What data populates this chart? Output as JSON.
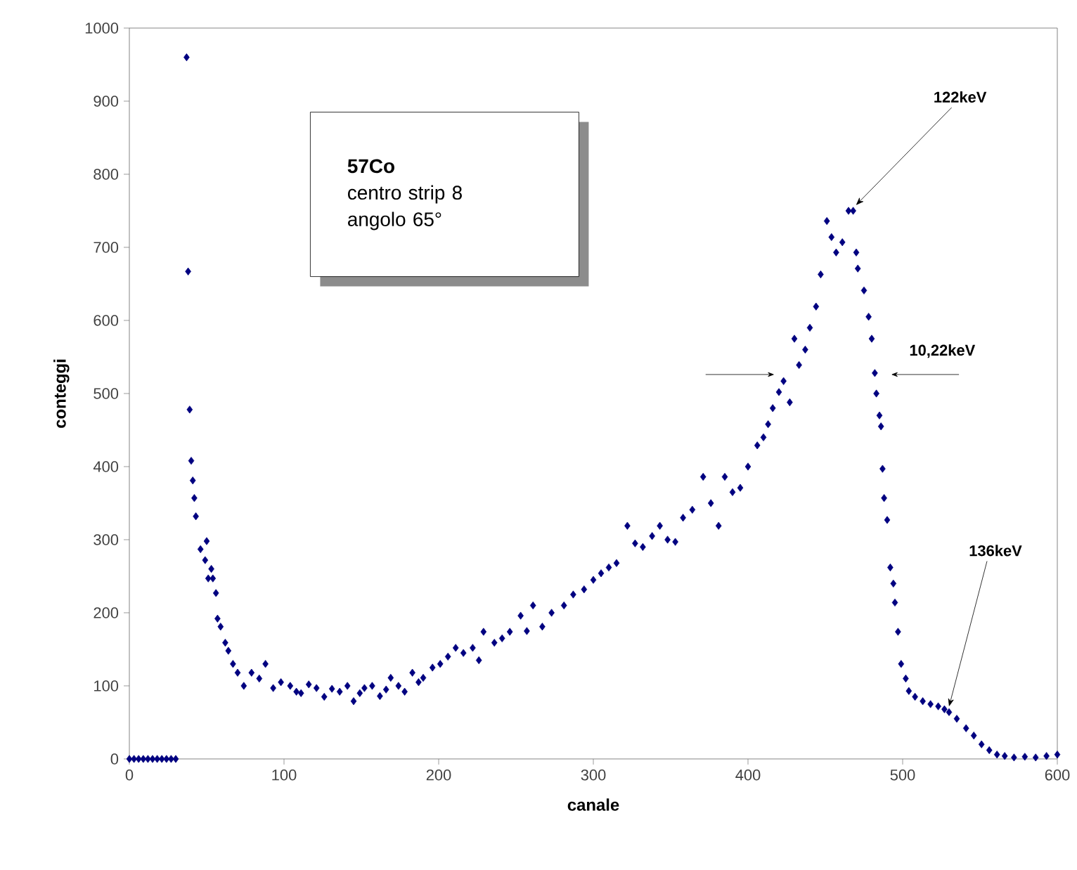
{
  "chart_data": {
    "type": "scatter",
    "xlabel": "canale",
    "ylabel": "conteggi",
    "xlim": [
      0,
      600
    ],
    "ylim": [
      0,
      1000
    ],
    "xticks": [
      0,
      100,
      200,
      300,
      400,
      500,
      600
    ],
    "yticks": [
      0,
      100,
      200,
      300,
      400,
      500,
      600,
      700,
      800,
      900,
      1000
    ],
    "grid": false,
    "marker": "diamond",
    "series": [
      {
        "color": "#000080",
        "x": [
          0,
          3,
          6,
          9,
          12,
          15,
          18,
          21,
          24,
          27,
          30,
          37,
          38,
          39,
          40,
          41,
          42,
          43,
          46,
          49,
          50,
          51,
          53,
          54,
          56,
          57,
          59,
          62,
          64,
          67,
          70,
          74,
          79,
          84,
          88,
          93,
          98,
          104,
          108,
          111,
          116,
          121,
          126,
          131,
          136,
          141,
          145,
          149,
          152,
          157,
          162,
          166,
          169,
          174,
          178,
          183,
          187,
          190,
          196,
          201,
          206,
          211,
          216,
          222,
          226,
          229,
          236,
          241,
          246,
          253,
          257,
          261,
          267,
          273,
          281,
          287,
          294,
          300,
          305,
          310,
          315,
          322,
          327,
          332,
          338,
          343,
          348,
          353,
          358,
          364,
          371,
          376,
          381,
          385,
          390,
          395,
          400,
          406,
          410,
          413,
          416,
          420,
          423,
          427,
          430,
          433,
          437,
          440,
          444,
          447,
          451,
          454,
          457,
          461,
          465,
          468,
          470,
          471,
          475,
          478,
          480,
          482,
          483,
          485,
          486,
          487,
          488,
          490,
          492,
          494,
          495,
          497,
          499,
          502,
          504,
          508,
          513,
          518,
          523,
          527,
          530,
          535,
          541,
          546,
          551,
          556,
          561,
          566,
          572,
          579,
          586,
          593,
          600
        ],
        "values": [
          0,
          0,
          0,
          0,
          0,
          0,
          0,
          0,
          0,
          0,
          0,
          960,
          667,
          478,
          408,
          381,
          357,
          332,
          287,
          272,
          298,
          247,
          260,
          247,
          227,
          192,
          181,
          159,
          148,
          130,
          118,
          100,
          118,
          110,
          130,
          97,
          105,
          100,
          92,
          90,
          102,
          97,
          85,
          96,
          92,
          100,
          79,
          90,
          97,
          100,
          86,
          95,
          111,
          100,
          92,
          118,
          105,
          111,
          125,
          130,
          140,
          152,
          145,
          152,
          135,
          174,
          159,
          165,
          174,
          196,
          175,
          210,
          181,
          200,
          210,
          225,
          232,
          245,
          254,
          262,
          268,
          319,
          295,
          290,
          305,
          319,
          300,
          297,
          330,
          341,
          386,
          350,
          319,
          386,
          365,
          371,
          400,
          429,
          440,
          458,
          480,
          502,
          517,
          488,
          575,
          539,
          560,
          590,
          619,
          663,
          736,
          714,
          693,
          707,
          750,
          750,
          693,
          671,
          641,
          605,
          575,
          528,
          500,
          470,
          455,
          397,
          357,
          327,
          262,
          240,
          214,
          174,
          130,
          110,
          93,
          85,
          79,
          75,
          72,
          68,
          64,
          55,
          42,
          32,
          20,
          12,
          6,
          4,
          2,
          3,
          2,
          4,
          6
        ]
      }
    ],
    "annotations": [
      "57Co",
      "centro strip 8",
      "angolo 65°",
      "10,22keV",
      {
        "text": "122keV",
        "x": 468,
        "y": 750
      },
      {
        "text": "136keV",
        "x": 530,
        "y": 64
      }
    ]
  }
}
